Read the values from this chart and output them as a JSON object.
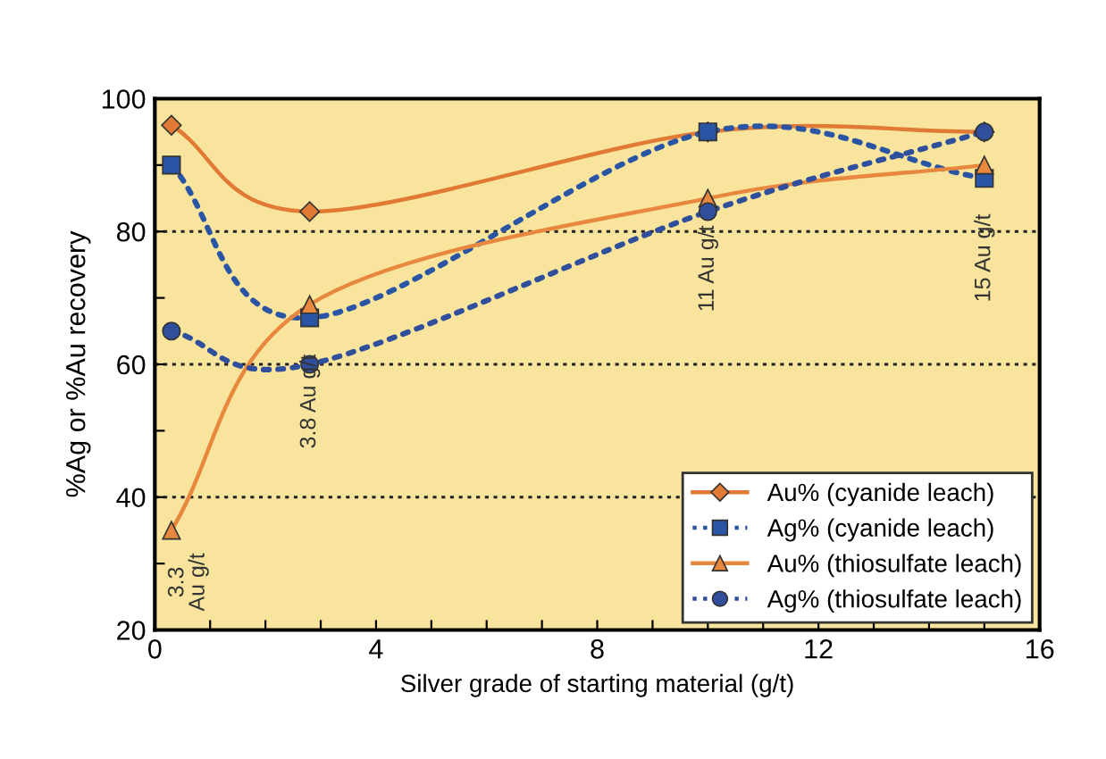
{
  "chart_data": {
    "type": "line",
    "xlabel": "Silver grade of starting material (g/t)",
    "ylabel": "%Ag or %Au recovery",
    "x": [
      0.3,
      2.8,
      10,
      15
    ],
    "series": [
      {
        "name": "Au% (cyanide leach)",
        "color": "#e07a35",
        "values": [
          96,
          83,
          95,
          95
        ],
        "marker": "diamond",
        "line_style": "solid"
      },
      {
        "name": "Ag% (cyanide leach)",
        "color": "#2a55a5",
        "values": [
          90,
          67,
          95,
          88
        ],
        "marker": "square",
        "line_style": "dotted"
      },
      {
        "name": "Au% (thiosulfate leach)",
        "color": "#e8883f",
        "values": [
          35,
          69,
          85,
          90
        ],
        "marker": "triangle",
        "line_style": "solid"
      },
      {
        "name": "Ag% (thiosulfate leach)",
        "color": "#2f4f9c",
        "values": [
          65,
          60,
          83,
          95
        ],
        "marker": "circle",
        "line_style": "dotted"
      }
    ],
    "annotations": [
      "3.3\nAu g/t",
      "3.8 Au g/t",
      "11 Au g/t",
      "15 Au g/t"
    ],
    "xlim": [
      0,
      16
    ],
    "xticks": [
      0,
      {
        "value": 1,
        "label": null
      },
      {
        "value": 2,
        "label": null
      },
      {
        "value": 3,
        "label": null
      },
      4,
      {
        "value": 5,
        "label": null
      },
      {
        "value": 6,
        "label": null
      },
      {
        "value": 7,
        "label": null
      },
      8,
      {
        "value": 9,
        "label": null
      },
      {
        "value": 10,
        "label": null
      },
      {
        "value": 11,
        "label": null
      },
      12,
      {
        "value": 13,
        "label": null
      },
      {
        "value": 14,
        "label": null
      },
      {
        "value": 15,
        "label": null
      },
      16
    ],
    "ylim": [
      20,
      100
    ],
    "yticks": [
      20,
      {
        "value": 30,
        "label": null
      },
      40,
      {
        "value": 50,
        "label": null
      },
      60,
      {
        "value": 70,
        "label": null
      },
      80,
      {
        "value": 90,
        "label": null
      },
      100
    ],
    "grid": "y",
    "legend": "bottom right"
  }
}
